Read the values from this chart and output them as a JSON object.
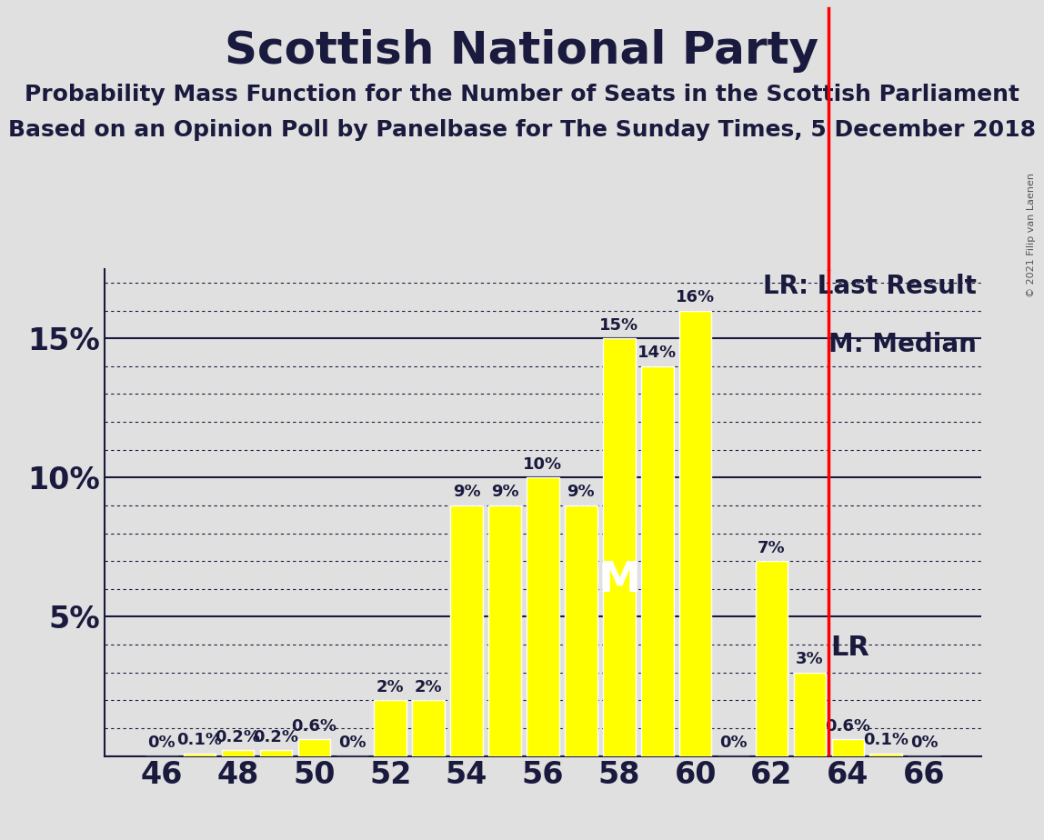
{
  "title": "Scottish National Party",
  "subtitle1": "Probability Mass Function for the Number of Seats in the Scottish Parliament",
  "subtitle2": "Based on an Opinion Poll by Panelbase for The Sunday Times, 5 December 2018",
  "copyright": "© 2021 Filip van Laenen",
  "seats": [
    46,
    47,
    48,
    49,
    50,
    51,
    52,
    53,
    54,
    55,
    56,
    57,
    58,
    59,
    60,
    61,
    62,
    63,
    64,
    65,
    66
  ],
  "probabilities": [
    0.0,
    0.1,
    0.2,
    0.2,
    0.6,
    0.0,
    2.0,
    2.0,
    9.0,
    9.0,
    10.0,
    9.0,
    15.0,
    14.0,
    16.0,
    0.0,
    7.0,
    3.0,
    0.6,
    0.1,
    0.0
  ],
  "bar_color": "#FFFF00",
  "bar_edge_color": "#FFFFFF",
  "background_color": "#E0E0E0",
  "median_seat": 58,
  "last_result_seat": 63,
  "ylim": [
    0,
    17.5
  ],
  "yticks": [
    0,
    5,
    10,
    15
  ],
  "ytick_labels": [
    "",
    "5%",
    "10%",
    "15%"
  ],
  "xlim": [
    44.5,
    67.5
  ],
  "xticks": [
    46,
    48,
    50,
    52,
    54,
    56,
    58,
    60,
    62,
    64,
    66
  ],
  "title_fontsize": 36,
  "subtitle_fontsize": 18,
  "axis_label_fontsize": 24,
  "bar_label_fontsize": 13,
  "legend_fontsize": 20,
  "median_label": "M",
  "lr_label": "LR",
  "lr_legend": "LR: Last Result",
  "m_legend": "M: Median",
  "text_color": "#1a1a3e"
}
